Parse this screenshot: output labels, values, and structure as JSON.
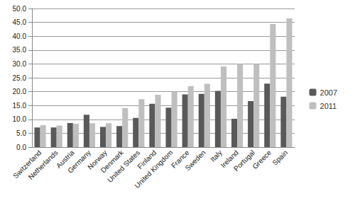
{
  "chart_data": {
    "type": "bar",
    "categories": [
      "Switzerland",
      "Netherlands",
      "Austria",
      "Germany",
      "Norway",
      "Denmark",
      "United States",
      "Finland",
      "United Kingdom",
      "France",
      "Sweden",
      "Italy",
      "Ireland",
      "Portugal",
      "Greece",
      "Spain"
    ],
    "series": [
      {
        "name": "2007",
        "color": "#595959",
        "values": [
          7.1,
          7.1,
          8.7,
          11.7,
          7.3,
          7.6,
          10.5,
          15.6,
          14.2,
          19.0,
          19.2,
          20.3,
          10.2,
          16.6,
          22.9,
          18.2
        ]
      },
      {
        "name": "2011",
        "color": "#bfbfbf",
        "values": [
          7.9,
          7.8,
          8.4,
          8.6,
          8.6,
          14.1,
          17.3,
          18.9,
          20.0,
          22.0,
          22.8,
          29.1,
          30.0,
          30.0,
          44.4,
          46.4
        ]
      }
    ],
    "ylim": [
      0,
      50
    ],
    "yticks": [
      {
        "value": 0,
        "label": "0.0"
      },
      {
        "value": 5,
        "label": "5.0"
      },
      {
        "value": 10,
        "label": "10.0"
      },
      {
        "value": 15,
        "label": "15.0"
      },
      {
        "value": 20,
        "label": "20.0"
      },
      {
        "value": 25,
        "label": "25.0"
      },
      {
        "value": 30,
        "label": "30.0"
      },
      {
        "value": 35,
        "label": "35.0"
      },
      {
        "value": 40,
        "label": "40.0"
      },
      {
        "value": 45,
        "label": "45.0"
      },
      {
        "value": 50,
        "label": "50.0"
      }
    ],
    "grid": true,
    "legend": "right"
  }
}
